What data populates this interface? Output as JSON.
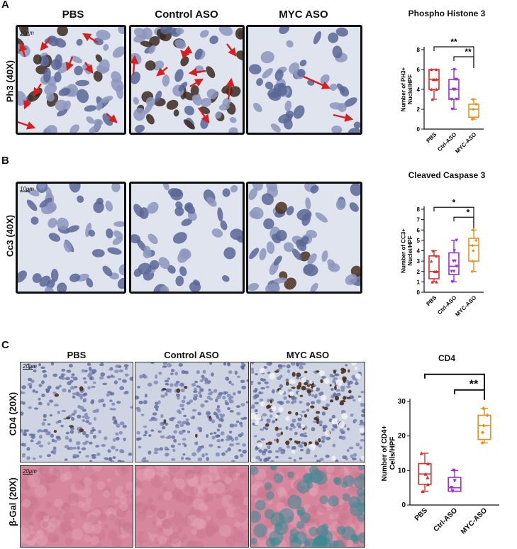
{
  "panels": {
    "A": {
      "letter": "A",
      "columns": [
        "PBS",
        "Control ASO",
        "MYC ASO"
      ],
      "row_label": "Ph3 (40X)",
      "scale_bar": "10μm"
    },
    "B": {
      "letter": "B",
      "row_label": "Cc3 (40X)",
      "scale_bar": "10μm"
    },
    "C": {
      "letter": "C",
      "columns": [
        "PBS",
        "Control ASO",
        "MYC ASO"
      ],
      "row_labels": [
        "CD4 (20X)",
        "β-Gal (20X)"
      ],
      "scale_bar_1": "20μm",
      "scale_bar_2": "20μm"
    }
  },
  "colors": {
    "pbs": "#d93030",
    "ctrl": "#9b2fd6",
    "myc": "#e8901e",
    "arrow": "#d42020"
  },
  "chart_data": [
    {
      "type": "box",
      "title": "Phospho Histone 3",
      "ylabel": "Number of PH3+ Nuclei/HPF",
      "categories": [
        "PBS",
        "Ctrl-ASO",
        "MYC-ASO"
      ],
      "ylim": [
        0,
        8
      ],
      "yticks": [
        "0",
        "2",
        "4",
        "6",
        "8"
      ],
      "boxes": [
        {
          "min": 3,
          "q1": 4,
          "median": 5,
          "q3": 6,
          "max": 6,
          "points": [
            3,
            4,
            5,
            5,
            6,
            6,
            5,
            4
          ]
        },
        {
          "min": 2,
          "q1": 3,
          "median": 4,
          "q3": 5,
          "max": 6,
          "points": [
            2,
            3,
            4,
            4,
            5,
            6,
            5,
            3,
            4
          ]
        },
        {
          "min": 1,
          "q1": 1.2,
          "median": 2,
          "q3": 2.5,
          "max": 3,
          "points": [
            1,
            1,
            2,
            2.5,
            3
          ]
        }
      ],
      "significance": [
        {
          "from": 0,
          "to": 2,
          "label": "**"
        },
        {
          "from": 1,
          "to": 2,
          "label": "**"
        }
      ]
    },
    {
      "type": "box",
      "title": "Cleaved Caspase 3",
      "ylabel": "Number of CC3+ Nuclei/HPF",
      "categories": [
        "PBS",
        "Ctrl-ASO",
        "MYC-ASO"
      ],
      "ylim": [
        0,
        8
      ],
      "yticks": [
        "0",
        "1",
        "2",
        "3",
        "4",
        "5",
        "6",
        "7",
        "8"
      ],
      "boxes": [
        {
          "min": 1,
          "q1": 1.3,
          "median": 2,
          "q3": 3.5,
          "max": 4,
          "points": [
            1,
            1,
            2,
            2,
            3,
            3.5,
            4
          ]
        },
        {
          "min": 1,
          "q1": 1.7,
          "median": 2.5,
          "q3": 3.8,
          "max": 5,
          "points": [
            1,
            2,
            2,
            3,
            3,
            4,
            5,
            2.5
          ]
        },
        {
          "min": 2,
          "q1": 3,
          "median": 4.5,
          "q3": 5.2,
          "max": 6,
          "points": [
            2,
            3,
            4,
            5,
            6,
            4.5
          ]
        }
      ],
      "significance": [
        {
          "from": 0,
          "to": 2,
          "label": "*"
        },
        {
          "from": 1,
          "to": 2,
          "label": "*"
        }
      ]
    },
    {
      "type": "box",
      "title": "CD4",
      "ylabel": "Number of CD4+ Cells/HPF",
      "categories": [
        "PBS",
        "Ctrl-ASO",
        "MYC-ASO"
      ],
      "ylim": [
        0,
        30
      ],
      "yticks": [
        "0",
        "10",
        "20",
        "30"
      ],
      "boxes": [
        {
          "min": 4,
          "q1": 6,
          "median": 9,
          "q3": 12,
          "max": 15,
          "points": [
            4,
            6,
            9,
            12,
            15,
            8
          ]
        },
        {
          "min": 4,
          "q1": 4,
          "median": 5,
          "q3": 8,
          "max": 10,
          "points": [
            4,
            5,
            7,
            10
          ]
        },
        {
          "min": 18,
          "q1": 19,
          "median": 23,
          "q3": 26,
          "max": 28,
          "points": [
            18,
            21,
            23,
            26,
            28
          ]
        }
      ],
      "significance": [
        {
          "from": 0,
          "to": 2,
          "label": "**"
        },
        {
          "from": 1,
          "to": 2,
          "label": "**"
        }
      ]
    }
  ]
}
